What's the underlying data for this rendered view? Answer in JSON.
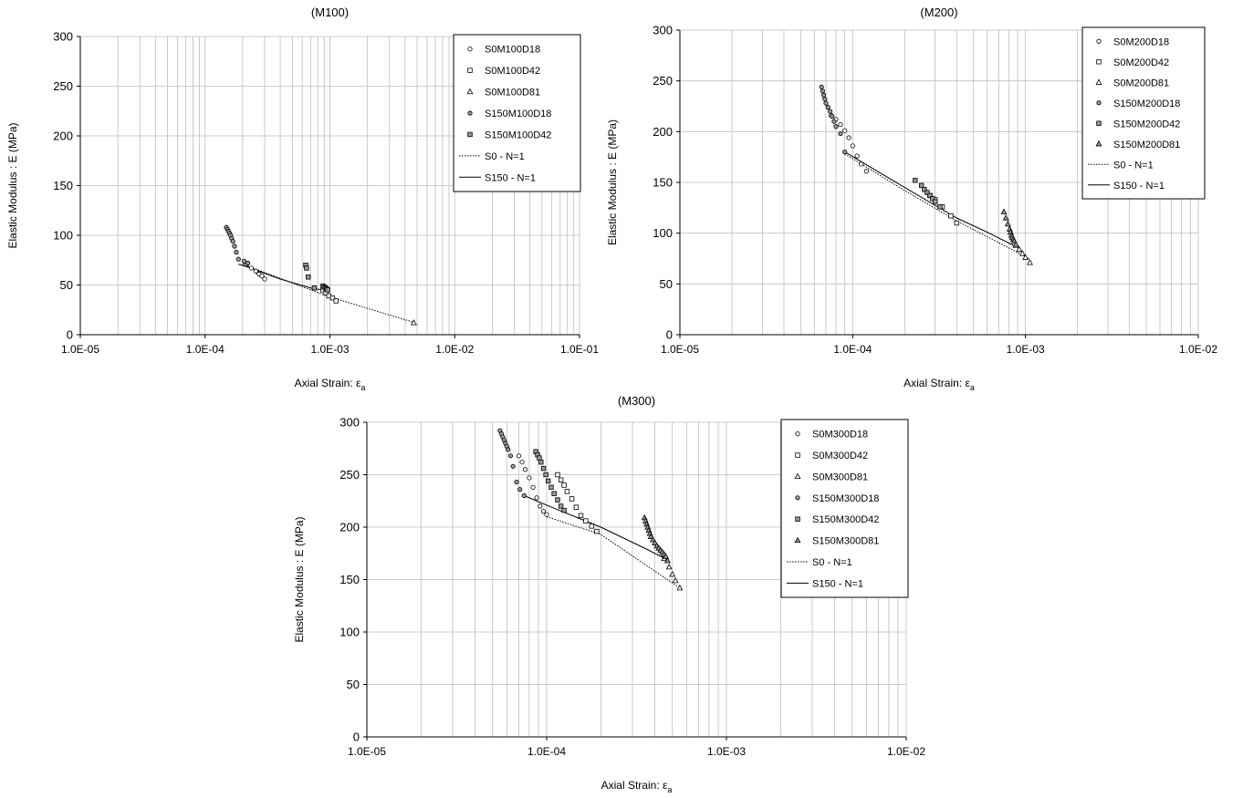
{
  "chart_data": [
    {
      "type": "scatter",
      "title": "(M100)",
      "xlabel": "Axial Strain: ε",
      "xlabel_sub": "a",
      "ylabel": "Elastic Modulus : E (MPa)",
      "xscale": "log",
      "xlim": [
        1e-05,
        0.1
      ],
      "ylim": [
        0,
        300
      ],
      "xticks": [
        "1.0E-05",
        "1.0E-04",
        "1.0E-03",
        "1.0E-02",
        "1.0E-01"
      ],
      "yticks": [
        0,
        50,
        100,
        150,
        200,
        250,
        300
      ],
      "grid": true,
      "legend_position": "top-right",
      "series": [
        {
          "name": "S0M100D18",
          "marker": "circle",
          "fill": "#ffffff",
          "x": [
            0.000215,
            0.000235,
            0.000255,
            0.00027,
            0.000285,
            0.0003
          ],
          "y": [
            71,
            67,
            64,
            61,
            59,
            56
          ]
        },
        {
          "name": "S0M100D42",
          "marker": "square",
          "fill": "#ffffff",
          "x": [
            0.00088,
            0.00093,
            0.00098,
            0.00105,
            0.00112
          ],
          "y": [
            45,
            42,
            39,
            37,
            34
          ]
        },
        {
          "name": "S0M100D81",
          "marker": "triangle",
          "fill": "#ffffff",
          "x": [
            0.0047
          ],
          "y": [
            12
          ]
        },
        {
          "name": "S150M100D18",
          "marker": "circle",
          "fill": "#999999",
          "x": [
            0.000148,
            0.000151,
            0.000154,
            0.000157,
            0.00016,
            0.000163,
            0.000167,
            0.000172,
            0.000178,
            0.000185,
            0.000205,
            0.00022
          ],
          "y": [
            108,
            106,
            104,
            102,
            100,
            97,
            94,
            89,
            83,
            76,
            74,
            72
          ]
        },
        {
          "name": "S150M100D42",
          "marker": "square",
          "fill": "#999999",
          "x": [
            0.00064,
            0.00065,
            0.00067,
            0.00075,
            0.00088,
            0.0009,
            0.00092,
            0.00094,
            0.00096
          ],
          "y": [
            70,
            67,
            58,
            47,
            49,
            48,
            47,
            46,
            45
          ]
        },
        {
          "name": "S0 - N=1",
          "marker": "none",
          "line": "dotted",
          "x": [
            0.0002,
            0.0005,
            0.001,
            0.0048
          ],
          "y": [
            71,
            52,
            38,
            12
          ]
        },
        {
          "name": "S150 - N=1",
          "marker": "none",
          "line": "solid",
          "x": [
            0.000185,
            0.00022,
            0.0004,
            0.00075,
            0.00095
          ],
          "y": [
            71,
            68,
            56,
            46,
            45
          ]
        }
      ]
    },
    {
      "type": "scatter",
      "title": "(M200)",
      "xlabel": "Axial Strain: ε",
      "xlabel_sub": "a",
      "ylabel": "Elastic Modulus : E (MPa)",
      "xscale": "log",
      "xlim": [
        1e-05,
        0.01
      ],
      "ylim": [
        0,
        300
      ],
      "xticks": [
        "1.0E-05",
        "1.0E-04",
        "1.0E-03",
        "1.0E-02"
      ],
      "yticks": [
        0,
        50,
        100,
        150,
        200,
        250,
        300
      ],
      "grid": true,
      "legend_position": "top-right",
      "series": [
        {
          "name": "S0M200D18",
          "marker": "circle",
          "fill": "#ffffff",
          "x": [
            7.5e-05,
            8e-05,
            8.5e-05,
            9e-05,
            9.5e-05,
            0.0001,
            0.000106,
            0.000112,
            0.00012
          ],
          "y": [
            216,
            212,
            207,
            201,
            194,
            186,
            176,
            168,
            161
          ]
        },
        {
          "name": "S0M200D42",
          "marker": "square",
          "fill": "#ffffff",
          "x": [
            0.00028,
            0.0003,
            0.00033,
            0.00037,
            0.0004
          ],
          "y": [
            137,
            133,
            126,
            117,
            110
          ]
        },
        {
          "name": "S0M200D81",
          "marker": "triangle",
          "fill": "#ffffff",
          "x": [
            0.00088,
            0.00092,
            0.00096,
            0.001,
            0.00106
          ],
          "y": [
            88,
            84,
            80,
            76,
            71
          ]
        },
        {
          "name": "S150M200D18",
          "marker": "circle",
          "fill": "#999999",
          "x": [
            6.6e-05,
            6.7e-05,
            6.8e-05,
            6.9e-05,
            7e-05,
            7.2e-05,
            7.4e-05,
            7.6e-05,
            7.8e-05,
            8e-05,
            8.5e-05,
            9e-05
          ],
          "y": [
            244,
            240,
            236,
            232,
            228,
            224,
            220,
            215,
            210,
            205,
            198,
            180
          ]
        },
        {
          "name": "S150M200D42",
          "marker": "square",
          "fill": "#999999",
          "x": [
            0.00023,
            0.00025,
            0.00026,
            0.00027,
            0.00028,
            0.00029,
            0.0003,
            0.00032
          ],
          "y": [
            152,
            147,
            143,
            140,
            137,
            134,
            131,
            126
          ]
        },
        {
          "name": "S150M200D81",
          "marker": "triangle",
          "fill": "#999999",
          "x": [
            0.00075,
            0.00077,
            0.00079,
            0.00081,
            0.00082,
            0.00083,
            0.00084,
            0.00085,
            0.00086,
            0.00088
          ],
          "y": [
            121,
            115,
            109,
            104,
            101,
            98,
            96,
            94,
            92,
            89
          ]
        },
        {
          "name": "S0 - N=1",
          "marker": "none",
          "line": "dotted",
          "x": [
            9e-05,
            0.0002,
            0.0004,
            0.00075,
            0.00105
          ],
          "y": [
            178,
            142,
            112,
            88,
            75
          ]
        },
        {
          "name": "S150 - N=1",
          "marker": "none",
          "line": "solid",
          "x": [
            9e-05,
            0.0002,
            0.0004,
            0.0006,
            0.00085
          ],
          "y": [
            180,
            145,
            115,
            101,
            88
          ]
        }
      ]
    },
    {
      "type": "scatter",
      "title": "(M300)",
      "xlabel": "Axial Strain: ε",
      "xlabel_sub": "a",
      "ylabel": "Elastic Modulus : E (MPa)",
      "xscale": "log",
      "xlim": [
        1e-05,
        0.01
      ],
      "ylim": [
        0,
        300
      ],
      "xticks": [
        "1.0E-05",
        "1.0E-04",
        "1.0E-03",
        "1.0E-02"
      ],
      "yticks": [
        0,
        50,
        100,
        150,
        200,
        250,
        300
      ],
      "grid": true,
      "legend_position": "top-right",
      "series": [
        {
          "name": "S0M300D18",
          "marker": "circle",
          "fill": "#ffffff",
          "x": [
            7e-05,
            7.3e-05,
            7.6e-05,
            8e-05,
            8.4e-05,
            8.8e-05,
            9.2e-05,
            9.6e-05,
            0.0001
          ],
          "y": [
            268,
            262,
            255,
            247,
            238,
            228,
            220,
            215,
            212
          ]
        },
        {
          "name": "S0M300D42",
          "marker": "square",
          "fill": "#ffffff",
          "x": [
            0.000115,
            0.00012,
            0.000125,
            0.00013,
            0.000138,
            0.000146,
            0.000155,
            0.000165,
            0.000178,
            0.00019
          ],
          "y": [
            250,
            245,
            240,
            234,
            227,
            219,
            211,
            206,
            201,
            196
          ]
        },
        {
          "name": "S0M300D81",
          "marker": "triangle",
          "fill": "#ffffff",
          "x": [
            0.00045,
            0.00048,
            0.0005,
            0.00052,
            0.00055
          ],
          "y": [
            170,
            162,
            155,
            149,
            142
          ]
        },
        {
          "name": "S150M300D18",
          "marker": "circle",
          "fill": "#999999",
          "x": [
            5.5e-05,
            5.6e-05,
            5.7e-05,
            5.8e-05,
            5.9e-05,
            6e-05,
            6.1e-05,
            6.3e-05,
            6.5e-05,
            6.8e-05,
            7.1e-05,
            7.5e-05
          ],
          "y": [
            292,
            289,
            286,
            283,
            280,
            277,
            274,
            268,
            258,
            243,
            236,
            230
          ]
        },
        {
          "name": "S150M300D42",
          "marker": "square",
          "fill": "#999999",
          "x": [
            8.7e-05,
            8.9e-05,
            9.1e-05,
            9.3e-05,
            9.6e-05,
            9.9e-05,
            0.000102,
            0.000106,
            0.00011,
            0.000115,
            0.00012,
            0.000125
          ],
          "y": [
            272,
            269,
            266,
            262,
            256,
            250,
            244,
            238,
            232,
            226,
            220,
            216
          ]
        },
        {
          "name": "S150M300D81",
          "marker": "triangle",
          "fill": "#999999",
          "x": [
            0.00035,
            0.000355,
            0.00036,
            0.000365,
            0.00037,
            0.000375,
            0.00038,
            0.00039,
            0.0004,
            0.00041,
            0.00042,
            0.00043,
            0.00044,
            0.00045,
            0.00046,
            0.00047
          ],
          "y": [
            209,
            206,
            203,
            200,
            197,
            194,
            191,
            188,
            185,
            182,
            180,
            178,
            176,
            174,
            172,
            168
          ]
        },
        {
          "name": "S0 - N=1",
          "marker": "none",
          "line": "dotted",
          "x": [
            0.0001,
            0.0002,
            0.0004,
            0.00055
          ],
          "y": [
            210,
            193,
            158,
            142
          ]
        },
        {
          "name": "S150 - N=1",
          "marker": "none",
          "line": "solid",
          "x": [
            7.5e-05,
            0.00011,
            0.0002,
            0.00035,
            0.00048
          ],
          "y": [
            230,
            218,
            200,
            180,
            168
          ]
        }
      ]
    }
  ]
}
